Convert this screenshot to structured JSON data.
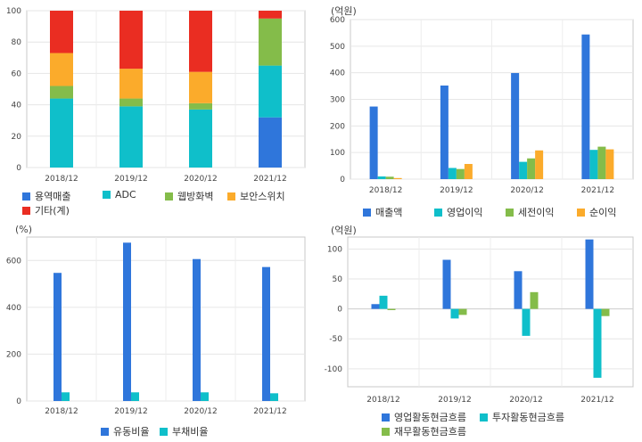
{
  "chart_data": [
    {
      "id": "revenue-mix",
      "type": "bar",
      "stacked": true,
      "title": "",
      "unit_label": "",
      "categories": [
        "2018/12",
        "2019/12",
        "2020/12",
        "2021/12"
      ],
      "ylim": [
        0,
        100
      ],
      "yticks": [
        0,
        20,
        40,
        60,
        80,
        100
      ],
      "grid": true,
      "legend_position": "bottom",
      "series": [
        {
          "name": "용역매출",
          "color": "#2f76db",
          "values": [
            0,
            0,
            0,
            32
          ]
        },
        {
          "name": "ADC",
          "color": "#0fbfca",
          "values": [
            44,
            39,
            37,
            33
          ]
        },
        {
          "name": "웹방화벽",
          "color": "#84bc4a",
          "values": [
            8,
            5,
            4,
            30
          ]
        },
        {
          "name": "보안스위치",
          "color": "#fbab2b",
          "values": [
            21,
            19,
            20,
            0
          ]
        },
        {
          "name": "기타(계)",
          "color": "#ea2d22",
          "values": [
            27,
            37,
            39,
            5
          ]
        }
      ]
    },
    {
      "id": "income-statement",
      "type": "bar",
      "stacked": false,
      "title": "",
      "unit_label": "(억원)",
      "categories": [
        "2018/12",
        "2019/12",
        "2020/12",
        "2021/12"
      ],
      "ylim": [
        0,
        600
      ],
      "yticks": [
        0,
        100,
        200,
        300,
        400,
        500,
        600
      ],
      "grid": true,
      "legend_position": "bottom",
      "series": [
        {
          "name": "매출액",
          "color": "#2f76db",
          "values": [
            273,
            352,
            399,
            544
          ]
        },
        {
          "name": "영업이익",
          "color": "#0fbfca",
          "values": [
            10,
            42,
            65,
            110
          ]
        },
        {
          "name": "세전이익",
          "color": "#84bc4a",
          "values": [
            9,
            38,
            78,
            122
          ]
        },
        {
          "name": "순이익",
          "color": "#fbab2b",
          "values": [
            4,
            57,
            108,
            112
          ]
        }
      ]
    },
    {
      "id": "ratios",
      "type": "bar",
      "stacked": false,
      "title": "",
      "unit_label": "(%)",
      "categories": [
        "2018/12",
        "2019/12",
        "2020/12",
        "2021/12"
      ],
      "ylim": [
        0,
        700
      ],
      "yticks": [
        0,
        200,
        400,
        600
      ],
      "grid": true,
      "legend_position": "bottom",
      "series": [
        {
          "name": "유동비율",
          "color": "#2f76db",
          "values": [
            547,
            676,
            606,
            572
          ]
        },
        {
          "name": "부채비율",
          "color": "#0fbfca",
          "values": [
            37,
            37,
            37,
            33
          ]
        }
      ]
    },
    {
      "id": "cash-flow",
      "type": "bar",
      "stacked": false,
      "title": "",
      "unit_label": "(억원)",
      "categories": [
        "2018/12",
        "2019/12",
        "2020/12",
        "2021/12"
      ],
      "ylim": [
        -130,
        120
      ],
      "yticks": [
        -100,
        -50,
        0,
        50,
        100
      ],
      "grid": true,
      "legend_position": "bottom",
      "series": [
        {
          "name": "영업활동현금흐름",
          "color": "#2f76db",
          "values": [
            8,
            82,
            63,
            116
          ]
        },
        {
          "name": "투자활동현금흐름",
          "color": "#0fbfca",
          "values": [
            22,
            -16,
            -45,
            -115
          ]
        },
        {
          "name": "재무활동현금흐름",
          "color": "#84bc4a",
          "values": [
            -2,
            -10,
            28,
            -12
          ]
        }
      ]
    }
  ]
}
